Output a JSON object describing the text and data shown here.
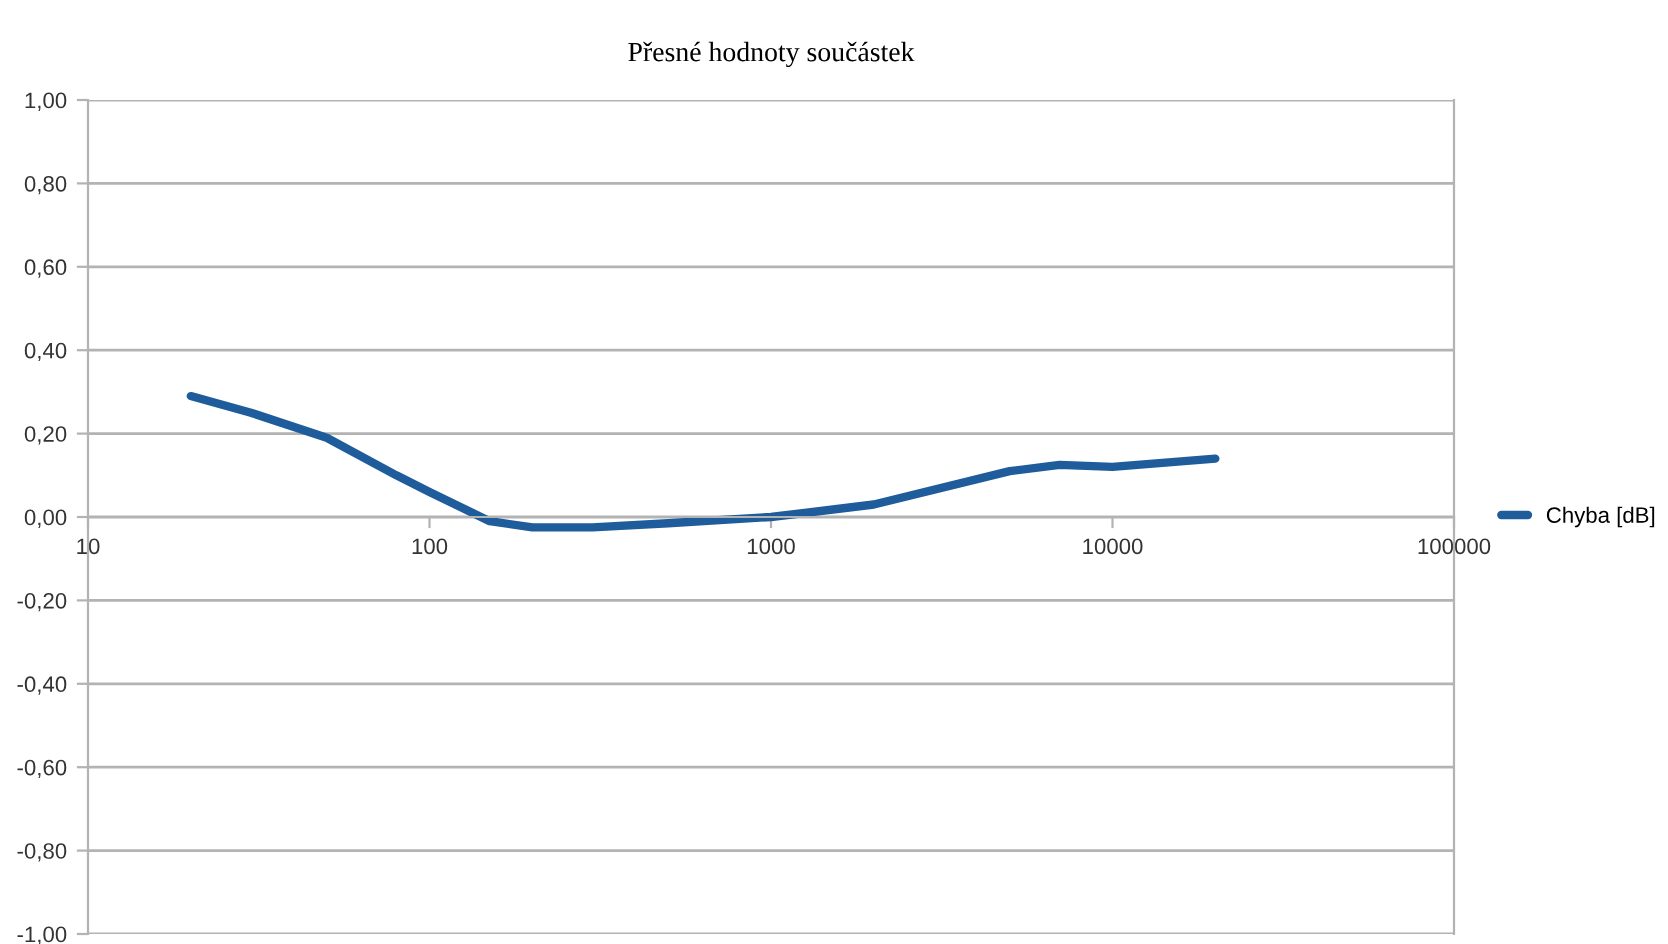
{
  "chart_data": {
    "type": "line",
    "title": "Přesné hodnoty součástek",
    "x": [
      20,
      30,
      50,
      80,
      100,
      150,
      200,
      300,
      500,
      1000,
      2000,
      5000,
      7000,
      10000,
      20000
    ],
    "series": [
      {
        "name": "Chyba [dB]",
        "color": "#1f5c9b",
        "values": [
          0.29,
          0.25,
          0.19,
          0.1,
          0.06,
          -0.01,
          -0.025,
          -0.025,
          -0.015,
          0.0,
          0.03,
          0.11,
          0.125,
          0.12,
          0.14
        ]
      }
    ],
    "log": "x",
    "xlim": [
      10,
      100000
    ],
    "ylim": [
      -1,
      1
    ],
    "xticks": [
      10,
      100,
      1000,
      10000,
      100000
    ],
    "yticks": [
      {
        "value": 1,
        "label": "1,00"
      },
      {
        "value": 0.8,
        "label": "0,80"
      },
      {
        "value": 0.6,
        "label": "0,60"
      },
      {
        "value": 0.4,
        "label": "0,40"
      },
      {
        "value": 0.2,
        "label": "0,20"
      },
      {
        "value": 0,
        "label": "0,00"
      },
      {
        "value": -0.2,
        "label": "-0,20"
      },
      {
        "value": -0.4,
        "label": "-0,40"
      },
      {
        "value": -0.6,
        "label": "-0,60"
      },
      {
        "value": -0.8,
        "label": "-0,80"
      },
      {
        "value": -1,
        "label": "-1,00"
      }
    ],
    "grid": "y",
    "legend": "right",
    "marker": "none",
    "line_style": "solid"
  }
}
